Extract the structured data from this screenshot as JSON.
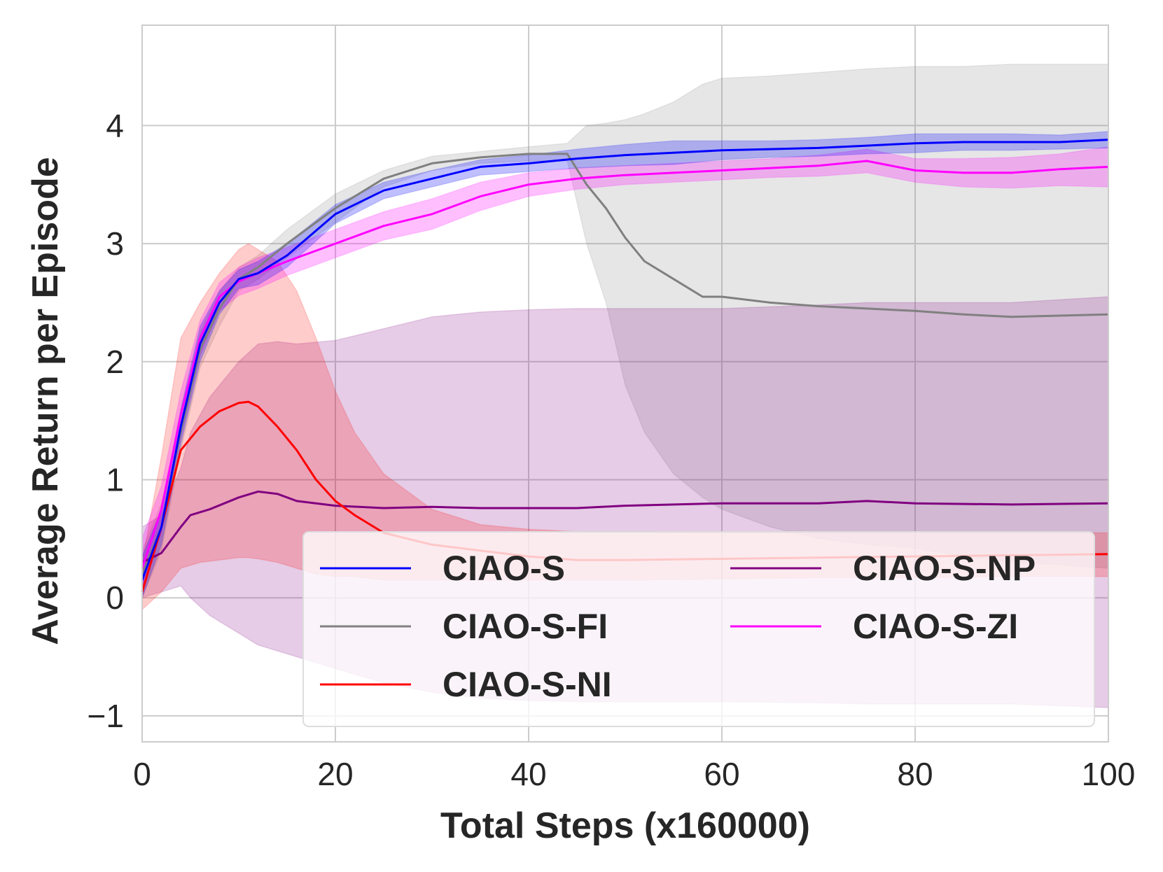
{
  "chart_data": {
    "type": "line",
    "title": "",
    "xlabel": "Total Steps (x160000)",
    "ylabel": "Average Return per Episode",
    "xlim": [
      0,
      100
    ],
    "ylim": [
      -1.22,
      4.85
    ],
    "xticks": [
      0,
      20,
      40,
      60,
      80,
      100
    ],
    "xtick_labels": [
      "0",
      "20",
      "40",
      "60",
      "80",
      "100"
    ],
    "yticks": [
      -1,
      0,
      1,
      2,
      3,
      4
    ],
    "ytick_labels": [
      "−1",
      "0",
      "1",
      "2",
      "3",
      "4"
    ],
    "grid": true,
    "legend_position": "lower-right",
    "series": [
      {
        "name": "CIAO-S",
        "color": "#0000ff",
        "x": [
          0,
          2,
          4,
          6,
          8,
          10,
          12,
          15,
          20,
          25,
          30,
          35,
          40,
          45,
          50,
          55,
          60,
          65,
          70,
          75,
          80,
          85,
          90,
          95,
          100
        ],
        "y": [
          0.15,
          0.6,
          1.45,
          2.15,
          2.5,
          2.7,
          2.75,
          2.9,
          3.25,
          3.45,
          3.55,
          3.65,
          3.68,
          3.72,
          3.75,
          3.77,
          3.79,
          3.8,
          3.81,
          3.83,
          3.85,
          3.86,
          3.86,
          3.86,
          3.88
        ],
        "upper": [
          0.35,
          0.75,
          1.6,
          2.3,
          2.6,
          2.78,
          2.85,
          3.0,
          3.33,
          3.52,
          3.62,
          3.71,
          3.75,
          3.8,
          3.84,
          3.87,
          3.87,
          3.87,
          3.88,
          3.9,
          3.93,
          3.93,
          3.93,
          3.92,
          3.95
        ],
        "lower": [
          0.0,
          0.45,
          1.3,
          2.0,
          2.4,
          2.62,
          2.65,
          2.8,
          3.17,
          3.38,
          3.48,
          3.58,
          3.61,
          3.64,
          3.66,
          3.67,
          3.71,
          3.73,
          3.74,
          3.76,
          3.77,
          3.79,
          3.79,
          3.8,
          3.81
        ]
      },
      {
        "name": "CIAO-S-FI",
        "color": "#808080",
        "x": [
          0,
          2,
          4,
          6,
          8,
          10,
          12,
          15,
          20,
          25,
          30,
          35,
          40,
          44,
          46,
          48,
          50,
          52,
          55,
          58,
          60,
          65,
          70,
          75,
          80,
          85,
          90,
          95,
          100
        ],
        "y": [
          0.2,
          0.6,
          1.4,
          2.1,
          2.45,
          2.7,
          2.8,
          3.0,
          3.3,
          3.55,
          3.68,
          3.73,
          3.76,
          3.76,
          3.5,
          3.3,
          3.05,
          2.85,
          2.7,
          2.55,
          2.55,
          2.5,
          2.47,
          2.45,
          2.43,
          2.4,
          2.38,
          2.39,
          2.4
        ],
        "upper": [
          0.4,
          0.8,
          1.55,
          2.25,
          2.6,
          2.8,
          2.9,
          3.12,
          3.42,
          3.62,
          3.74,
          3.78,
          3.82,
          3.85,
          4.0,
          4.02,
          4.05,
          4.1,
          4.2,
          4.35,
          4.4,
          4.42,
          4.45,
          4.48,
          4.5,
          4.5,
          4.52,
          4.52,
          4.52
        ],
        "lower": [
          0.0,
          0.4,
          1.25,
          1.95,
          2.3,
          2.6,
          2.7,
          2.88,
          3.18,
          3.48,
          3.62,
          3.68,
          3.7,
          3.7,
          3.0,
          2.5,
          1.8,
          1.4,
          1.05,
          0.85,
          0.75,
          0.6,
          0.5,
          0.45,
          0.42,
          0.35,
          0.3,
          0.28,
          0.25
        ]
      },
      {
        "name": "CIAO-S-NI",
        "color": "#ff0000",
        "x": [
          0,
          2,
          4,
          6,
          8,
          10,
          11,
          12,
          14,
          16,
          18,
          20,
          22,
          25,
          30,
          35,
          40,
          45,
          50,
          60,
          70,
          80,
          90,
          100
        ],
        "y": [
          0.05,
          0.6,
          1.25,
          1.45,
          1.58,
          1.65,
          1.66,
          1.62,
          1.45,
          1.25,
          1.0,
          0.82,
          0.7,
          0.55,
          0.45,
          0.4,
          0.35,
          0.32,
          0.32,
          0.33,
          0.34,
          0.35,
          0.36,
          0.37
        ],
        "upper": [
          0.3,
          1.2,
          2.2,
          2.5,
          2.75,
          2.95,
          3.0,
          2.95,
          2.85,
          2.6,
          2.2,
          1.75,
          1.4,
          1.05,
          0.75,
          0.62,
          0.58,
          0.56,
          0.56,
          0.55,
          0.55,
          0.55,
          0.55,
          0.55
        ],
        "lower": [
          -0.1,
          0.05,
          0.25,
          0.3,
          0.32,
          0.34,
          0.34,
          0.33,
          0.3,
          0.25,
          0.2,
          0.18,
          0.18,
          0.15,
          0.15,
          0.15,
          0.15,
          0.15,
          0.15,
          0.16,
          0.17,
          0.17,
          0.18,
          0.18
        ]
      },
      {
        "name": "CIAO-S-NP",
        "color": "#800080",
        "x": [
          0,
          2,
          4,
          5,
          7,
          10,
          12,
          14,
          16,
          20,
          25,
          30,
          35,
          40,
          45,
          50,
          60,
          70,
          75,
          80,
          90,
          100
        ],
        "y": [
          0.3,
          0.38,
          0.6,
          0.7,
          0.75,
          0.85,
          0.9,
          0.88,
          0.82,
          0.78,
          0.76,
          0.77,
          0.76,
          0.76,
          0.76,
          0.78,
          0.8,
          0.8,
          0.82,
          0.8,
          0.79,
          0.8
        ],
        "upper": [
          0.6,
          0.7,
          1.1,
          1.4,
          1.7,
          2.0,
          2.15,
          2.17,
          2.15,
          2.18,
          2.28,
          2.38,
          2.42,
          2.44,
          2.45,
          2.45,
          2.45,
          2.48,
          2.5,
          2.5,
          2.5,
          2.55
        ],
        "lower": [
          0.0,
          0.05,
          0.1,
          0.0,
          -0.15,
          -0.3,
          -0.4,
          -0.45,
          -0.5,
          -0.6,
          -0.72,
          -0.8,
          -0.85,
          -0.87,
          -0.88,
          -0.88,
          -0.88,
          -0.89,
          -0.9,
          -0.9,
          -0.9,
          -0.93
        ]
      },
      {
        "name": "CIAO-S-ZI",
        "color": "#ff00ff",
        "x": [
          0,
          2,
          4,
          6,
          8,
          10,
          12,
          15,
          20,
          25,
          30,
          35,
          40,
          45,
          50,
          55,
          60,
          65,
          70,
          75,
          80,
          85,
          90,
          95,
          100
        ],
        "y": [
          0.25,
          0.75,
          1.55,
          2.2,
          2.55,
          2.68,
          2.75,
          2.85,
          3.0,
          3.15,
          3.25,
          3.4,
          3.5,
          3.55,
          3.58,
          3.6,
          3.62,
          3.64,
          3.66,
          3.7,
          3.62,
          3.6,
          3.6,
          3.63,
          3.65
        ],
        "upper": [
          0.5,
          0.95,
          1.75,
          2.35,
          2.67,
          2.8,
          2.88,
          2.97,
          3.12,
          3.27,
          3.38,
          3.52,
          3.6,
          3.64,
          3.66,
          3.68,
          3.7,
          3.72,
          3.75,
          3.8,
          3.72,
          3.72,
          3.73,
          3.76,
          3.82
        ],
        "lower": [
          0.05,
          0.55,
          1.35,
          2.05,
          2.43,
          2.56,
          2.62,
          2.73,
          2.88,
          3.03,
          3.12,
          3.28,
          3.4,
          3.46,
          3.5,
          3.52,
          3.54,
          3.56,
          3.57,
          3.6,
          3.52,
          3.48,
          3.47,
          3.49,
          3.48
        ]
      }
    ]
  }
}
